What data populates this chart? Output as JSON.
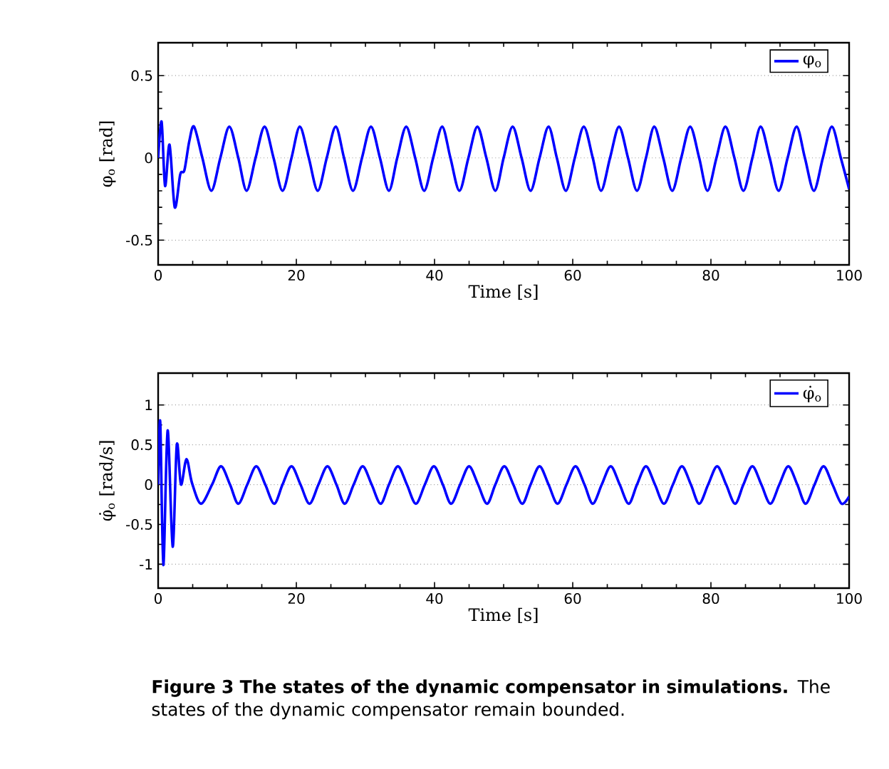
{
  "chart_data": [
    {
      "type": "line",
      "xlabel": "Time [s]",
      "ylabel": "φ$_{o}$ [rad]",
      "xlim": [
        0,
        100
      ],
      "ylim": [
        -0.65,
        0.7
      ],
      "xticks": [
        0,
        20,
        40,
        60,
        80,
        100
      ],
      "yticks": [
        -0.5,
        0,
        0.5
      ],
      "grid": "y",
      "legend": "top right",
      "line_style": "solid",
      "series": [
        {
          "name": "φ$_{o}$",
          "color": "#0000ff",
          "x": [
            0,
            0.5,
            1.0,
            1.65,
            2.4,
            3.2,
            3.8,
            4.5,
            5.2,
            6.4,
            7.7,
            9.0,
            10.3,
            11.6,
            12.8,
            14.1,
            15.4,
            16.7,
            18.0,
            19.3,
            20.5,
            21.8,
            23.1,
            24.4,
            25.7,
            26.9,
            28.2,
            29.5,
            30.8,
            32.1,
            33.4,
            34.6,
            35.9,
            37.2,
            38.5,
            39.8,
            41.1,
            42.3,
            43.6,
            44.9,
            46.2,
            47.5,
            48.8,
            50.0,
            51.3,
            52.6,
            53.9,
            55.2,
            56.5,
            57.7,
            59.0,
            60.3,
            61.6,
            62.9,
            64.1,
            65.4,
            66.7,
            68.0,
            69.3,
            70.6,
            71.8,
            73.1,
            74.4,
            75.7,
            77.0,
            78.3,
            79.5,
            80.8,
            82.1,
            83.4,
            84.7,
            86.0,
            87.2,
            88.5,
            89.8,
            91.1,
            92.4,
            93.6,
            94.9,
            96.2,
            97.5,
            98.8,
            100
          ],
          "values": [
            0,
            0.22,
            -0.17,
            0.08,
            -0.3,
            -0.1,
            -0.075,
            0.1,
            0.19,
            0,
            -0.2,
            0,
            0.19,
            0,
            -0.2,
            0,
            0.19,
            0,
            -0.2,
            0,
            0.19,
            0,
            -0.2,
            0,
            0.19,
            0,
            -0.2,
            0,
            0.19,
            0,
            -0.2,
            0,
            0.19,
            0,
            -0.2,
            0,
            0.19,
            0,
            -0.2,
            0,
            0.19,
            0,
            -0.2,
            0,
            0.19,
            0,
            -0.2,
            0,
            0.19,
            0,
            -0.2,
            0,
            0.19,
            0,
            -0.2,
            0,
            0.19,
            0,
            -0.2,
            0,
            0.19,
            0,
            -0.2,
            0,
            0.19,
            0,
            -0.2,
            0,
            0.19,
            0,
            -0.2,
            0,
            0.19,
            0,
            -0.2,
            0,
            0.19,
            0,
            -0.2,
            0,
            0.19,
            0,
            -0.19
          ]
        }
      ]
    },
    {
      "type": "line",
      "xlabel": "Time [s]",
      "ylabel": "φ̇$_{o}$ [rad/s]",
      "xlim": [
        0,
        100
      ],
      "ylim": [
        -1.3,
        1.4
      ],
      "xticks": [
        0,
        20,
        40,
        60,
        80,
        100
      ],
      "yticks": [
        -1,
        -0.5,
        0,
        0.5,
        1
      ],
      "grid": "y",
      "legend": "top right",
      "line_style": "solid",
      "annotations": [
        "**Figure 3 The states of the dynamic compensator in simulations.** The states of the dynamic compensator remain bounded."
      ],
      "series": [
        {
          "name": "φ̇$_{o}$",
          "color": "#0000ff",
          "x": [
            0,
            0.3,
            0.75,
            1.37,
            2.1,
            2.7,
            3.3,
            4.1,
            4.9,
            6.2,
            7.8,
            9.1,
            10.4,
            11.6,
            12.9,
            14.2,
            15.5,
            16.8,
            18.0,
            19.3,
            20.6,
            21.9,
            23.2,
            24.5,
            25.8,
            27.0,
            28.3,
            29.6,
            30.9,
            32.2,
            33.4,
            34.7,
            36.0,
            37.3,
            38.6,
            39.9,
            41.2,
            42.4,
            43.7,
            45.0,
            46.3,
            47.6,
            48.8,
            50.1,
            51.4,
            52.7,
            53.9,
            55.2,
            56.5,
            57.8,
            59.1,
            60.4,
            61.7,
            62.9,
            64.2,
            65.5,
            66.8,
            68.1,
            69.3,
            70.6,
            71.9,
            73.2,
            74.5,
            75.8,
            77.1,
            78.3,
            79.6,
            80.9,
            82.2,
            83.5,
            84.7,
            86.0,
            87.3,
            88.6,
            89.9,
            91.2,
            92.5,
            93.7,
            95.0,
            96.3,
            97.6,
            98.9,
            100
          ],
          "values": [
            0,
            0.79,
            -1.01,
            0.68,
            -0.78,
            0.5,
            0,
            0.32,
            0.02,
            -0.24,
            0,
            0.23,
            0,
            -0.24,
            0,
            0.23,
            0,
            -0.24,
            0,
            0.23,
            0,
            -0.24,
            0,
            0.23,
            0,
            -0.24,
            0,
            0.23,
            0,
            -0.24,
            0,
            0.23,
            0,
            -0.24,
            0,
            0.23,
            0,
            -0.24,
            0,
            0.23,
            0,
            -0.24,
            0,
            0.23,
            0,
            -0.24,
            0,
            0.23,
            0,
            -0.24,
            0,
            0.23,
            0,
            -0.24,
            0,
            0.23,
            0,
            -0.24,
            0,
            0.23,
            0,
            -0.24,
            0,
            0.23,
            0,
            -0.24,
            0,
            0.23,
            0,
            -0.24,
            0,
            0.23,
            0,
            -0.24,
            0,
            0.23,
            0,
            -0.24,
            0,
            0.23,
            0,
            -0.24,
            -0.15
          ]
        }
      ]
    }
  ]
}
